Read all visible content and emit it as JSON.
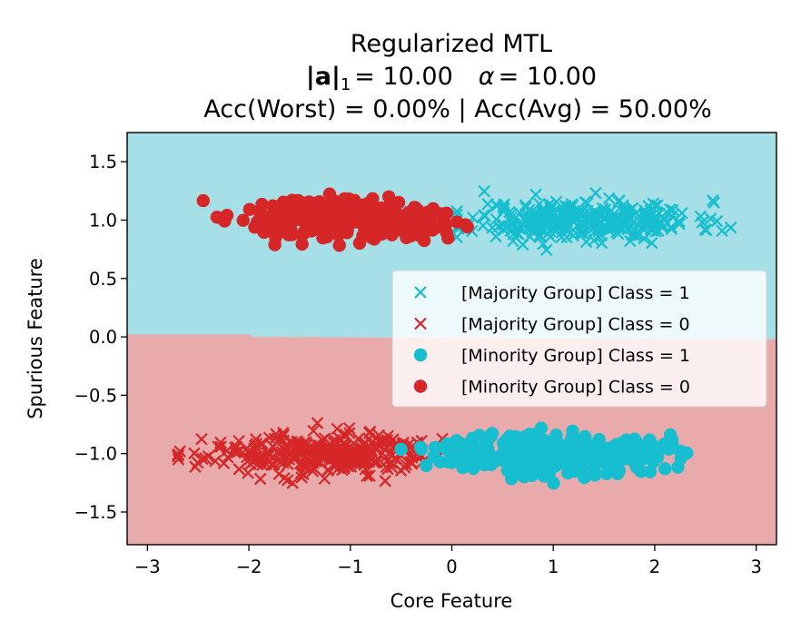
{
  "chart_data": {
    "type": "scatter",
    "title": {
      "line1": "Regularized MTL",
      "line2_norm_label": "|a|",
      "line2_norm_sub": "1",
      "line2_norm_value": "= 10.00",
      "line2_alpha_symbol": "α",
      "line2_alpha_value": "= 10.00",
      "line3": "Acc(Worst) = 0.00% | Acc(Avg) = 50.00%"
    },
    "xlabel": "Core Feature",
    "ylabel": "Spurious Feature",
    "xlim": [
      -3.2,
      3.2
    ],
    "ylim": [
      -1.78,
      1.75
    ],
    "xticks": [
      {
        "value": -3,
        "label": "−3"
      },
      {
        "value": -2,
        "label": "−2"
      },
      {
        "value": -1,
        "label": "−1"
      },
      {
        "value": 0,
        "label": "0"
      },
      {
        "value": 1,
        "label": "1"
      },
      {
        "value": 2,
        "label": "2"
      },
      {
        "value": 3,
        "label": "3"
      }
    ],
    "yticks": [
      {
        "value": 1.5,
        "label": "1.5"
      },
      {
        "value": 1.0,
        "label": "1.0"
      },
      {
        "value": 0.5,
        "label": "0.5"
      },
      {
        "value": 0.0,
        "label": "0.0"
      },
      {
        "value": -0.5,
        "label": "−0.5"
      },
      {
        "value": -1.0,
        "label": "−1.0"
      },
      {
        "value": -1.5,
        "label": "−1.5"
      }
    ],
    "decision_regions": [
      {
        "name": "class-1-region",
        "color": "#a6dfe6",
        "boundary": [
          [
            -3.2,
            0.02
          ],
          [
            -1.98,
            0.02
          ],
          [
            -1.98,
            0.0
          ],
          [
            3.2,
            -0.02
          ]
        ],
        "side": "above"
      },
      {
        "name": "class-0-region",
        "color": "#e8aaab",
        "side": "below"
      }
    ],
    "series": [
      {
        "name": "[Majority Group] Class = 1",
        "marker": "x",
        "color": "#17becf",
        "cluster": {
          "center": [
            1.3,
            1.0
          ],
          "sx": 0.55,
          "sy": 0.085,
          "n": 340,
          "seed": 11,
          "xmin": 0.05,
          "xmax": 2.75
        }
      },
      {
        "name": "[Majority Group] Class = 0",
        "marker": "x",
        "color": "#d62728",
        "cluster": {
          "center": [
            -1.3,
            -1.0
          ],
          "sx": 0.55,
          "sy": 0.085,
          "n": 340,
          "seed": 23,
          "xmin": -2.7,
          "xmax": 0.25
        }
      },
      {
        "name": "[Minority Group] Class = 1",
        "marker": "o",
        "color": "#17becf",
        "cluster": {
          "center": [
            1.0,
            -1.0
          ],
          "sx": 0.55,
          "sy": 0.09,
          "n": 320,
          "seed": 37,
          "xmin": -0.5,
          "xmax": 2.65
        }
      },
      {
        "name": "[Minority Group] Class = 0",
        "marker": "o",
        "color": "#d62728",
        "cluster": {
          "center": [
            -1.05,
            1.0
          ],
          "sx": 0.5,
          "sy": 0.085,
          "n": 320,
          "seed": 51,
          "xmin": -2.45,
          "xmax": 0.7
        }
      }
    ],
    "legend": {
      "position": "center-right",
      "entries": [
        {
          "label": "[Majority Group] Class = 1",
          "marker": "x",
          "color": "#17becf"
        },
        {
          "label": "[Majority Group] Class = 0",
          "marker": "x",
          "color": "#d62728"
        },
        {
          "label": "[Minority Group] Class = 1",
          "marker": "o",
          "color": "#17becf"
        },
        {
          "label": "[Minority Group] Class = 0",
          "marker": "o",
          "color": "#d62728"
        }
      ]
    }
  }
}
